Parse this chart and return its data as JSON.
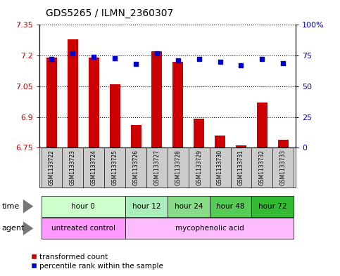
{
  "title": "GDS5265 / ILMN_2360307",
  "samples": [
    "GSM1133722",
    "GSM1133723",
    "GSM1133724",
    "GSM1133725",
    "GSM1133726",
    "GSM1133727",
    "GSM1133728",
    "GSM1133729",
    "GSM1133730",
    "GSM1133731",
    "GSM1133732",
    "GSM1133733"
  ],
  "transformed_count": [
    7.19,
    7.28,
    7.19,
    7.06,
    6.86,
    7.22,
    7.17,
    6.89,
    6.81,
    6.76,
    6.97,
    6.79
  ],
  "percentile_rank": [
    72,
    77,
    74,
    73,
    68,
    77,
    71,
    72,
    70,
    67,
    72,
    69
  ],
  "ylim_left": [
    6.75,
    7.35
  ],
  "ylim_right": [
    0,
    100
  ],
  "yticks_left": [
    6.75,
    6.9,
    7.05,
    7.2,
    7.35
  ],
  "yticks_right": [
    0,
    25,
    50,
    75,
    100
  ],
  "ytick_labels_left": [
    "6.75",
    "6.9",
    "7.05",
    "7.2",
    "7.35"
  ],
  "ytick_labels_right": [
    "0",
    "25",
    "50",
    "75",
    "100%"
  ],
  "bar_color": "#cc0000",
  "dot_color": "#0000cc",
  "bar_bottom": 6.75,
  "time_groups": [
    {
      "label": "hour 0",
      "start": 0,
      "end": 4,
      "color": "#ccffcc"
    },
    {
      "label": "hour 12",
      "start": 4,
      "end": 6,
      "color": "#aaeebb"
    },
    {
      "label": "hour 24",
      "start": 6,
      "end": 8,
      "color": "#88dd88"
    },
    {
      "label": "hour 48",
      "start": 8,
      "end": 10,
      "color": "#55cc55"
    },
    {
      "label": "hour 72",
      "start": 10,
      "end": 12,
      "color": "#33bb33"
    }
  ],
  "agent_groups": [
    {
      "label": "untreated control",
      "start": 0,
      "end": 4,
      "color": "#ff99ff"
    },
    {
      "label": "mycophenolic acid",
      "start": 4,
      "end": 12,
      "color": "#ffbbff"
    }
  ],
  "legend_bar_label": "transformed count",
  "legend_dot_label": "percentile rank within the sample",
  "background_color": "#ffffff",
  "plot_bg": "#ffffff",
  "bar_width": 0.5,
  "xlabel_bg": "#cccccc",
  "time_label_color": "#000000",
  "agent_label_color": "#000000"
}
